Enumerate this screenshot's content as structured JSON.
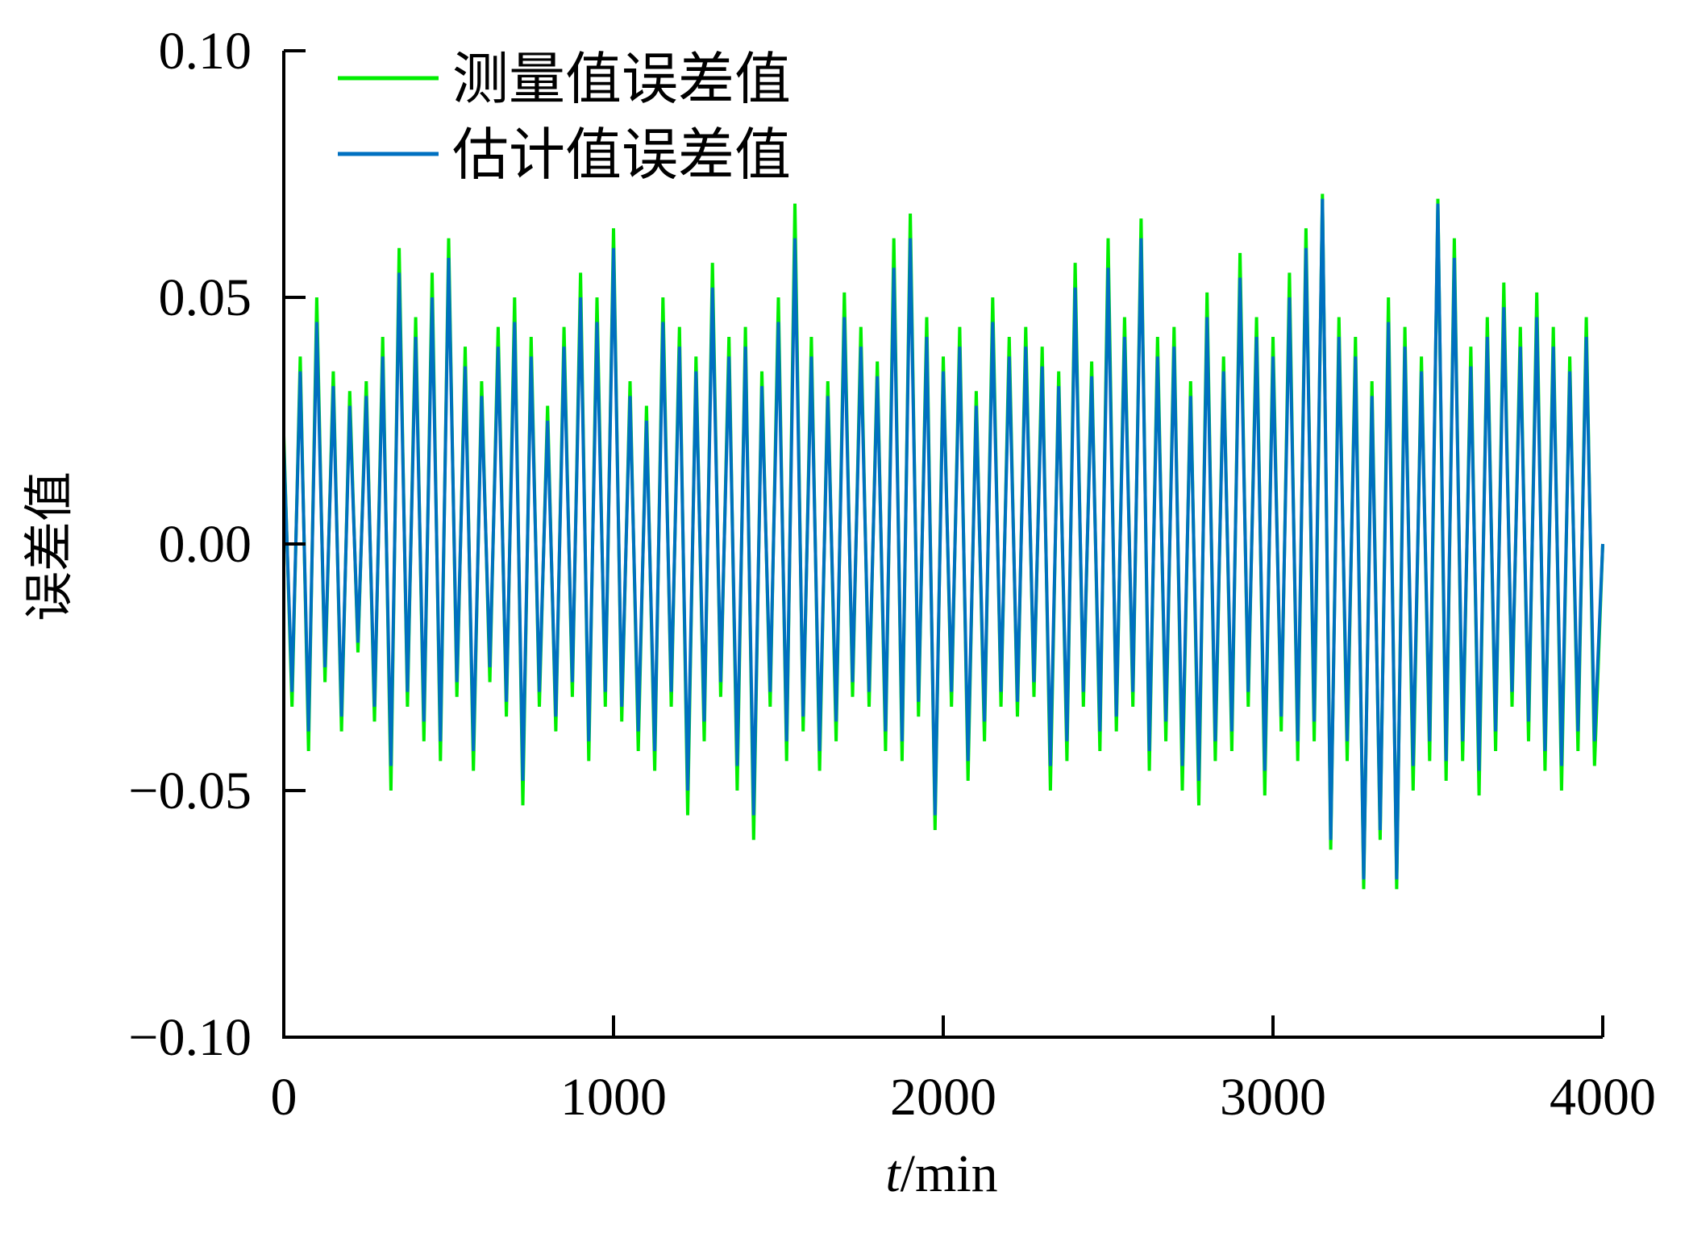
{
  "chart_data": {
    "type": "line",
    "title": "",
    "xlabel_italic": "t",
    "xlabel_rest": "/min",
    "ylabel": "误差值",
    "xlim": [
      0,
      4000
    ],
    "ylim": [
      -0.1,
      0.1
    ],
    "xticks": [
      "0",
      "1000",
      "2000",
      "3000",
      "4000"
    ],
    "xtick_values": [
      0,
      1000,
      2000,
      3000,
      4000
    ],
    "yticks": [
      "0.10",
      "0.05",
      "0.00",
      "−0.05",
      "−0.10"
    ],
    "ytick_values": [
      0.1,
      0.05,
      0.0,
      -0.05,
      -0.1
    ],
    "grid": false,
    "legend_position": "top-left",
    "x_step": 25,
    "series": [
      {
        "name": "测量值误差值",
        "color": "#00ee00",
        "values": [
          0.022,
          -0.033,
          0.038,
          -0.042,
          0.05,
          -0.028,
          0.035,
          -0.038,
          0.031,
          -0.022,
          0.033,
          -0.036,
          0.042,
          -0.05,
          0.06,
          -0.033,
          0.046,
          -0.04,
          0.055,
          -0.044,
          0.062,
          -0.031,
          0.04,
          -0.046,
          0.033,
          -0.028,
          0.044,
          -0.035,
          0.05,
          -0.053,
          0.042,
          -0.033,
          0.028,
          -0.038,
          0.044,
          -0.031,
          0.055,
          -0.044,
          0.05,
          -0.033,
          0.064,
          -0.036,
          0.033,
          -0.042,
          0.028,
          -0.046,
          0.05,
          -0.033,
          0.044,
          -0.055,
          0.038,
          -0.04,
          0.057,
          -0.031,
          0.042,
          -0.05,
          0.044,
          -0.06,
          0.035,
          -0.033,
          0.05,
          -0.044,
          0.069,
          -0.038,
          0.042,
          -0.046,
          0.033,
          -0.04,
          0.051,
          -0.031,
          0.044,
          -0.033,
          0.037,
          -0.042,
          0.062,
          -0.044,
          0.067,
          -0.035,
          0.046,
          -0.058,
          0.038,
          -0.033,
          0.044,
          -0.048,
          0.031,
          -0.04,
          0.05,
          -0.033,
          0.042,
          -0.035,
          0.044,
          -0.031,
          0.04,
          -0.05,
          0.035,
          -0.044,
          0.057,
          -0.033,
          0.037,
          -0.042,
          0.062,
          -0.038,
          0.046,
          -0.033,
          0.066,
          -0.046,
          0.042,
          -0.04,
          0.044,
          -0.05,
          0.033,
          -0.053,
          0.051,
          -0.044,
          0.038,
          -0.042,
          0.059,
          -0.033,
          0.046,
          -0.051,
          0.042,
          -0.038,
          0.055,
          -0.044,
          0.064,
          -0.04,
          0.071,
          -0.062,
          0.046,
          -0.044,
          0.042,
          -0.07,
          0.033,
          -0.06,
          0.05,
          -0.07,
          0.044,
          -0.05,
          0.038,
          -0.044,
          0.07,
          -0.048,
          0.062,
          -0.044,
          0.04,
          -0.051,
          0.046,
          -0.042,
          0.053,
          -0.033,
          0.044,
          -0.04,
          0.051,
          -0.046,
          0.044,
          -0.05,
          0.038,
          -0.042,
          0.046,
          -0.045,
          0.0
        ]
      },
      {
        "name": "估计值误差值",
        "color": "#0070c0",
        "values": [
          0.02,
          -0.03,
          0.035,
          -0.038,
          0.045,
          -0.025,
          0.032,
          -0.035,
          0.028,
          -0.02,
          0.03,
          -0.033,
          0.038,
          -0.045,
          0.055,
          -0.03,
          0.042,
          -0.036,
          0.05,
          -0.04,
          0.058,
          -0.028,
          0.036,
          -0.042,
          0.03,
          -0.025,
          0.04,
          -0.032,
          0.045,
          -0.048,
          0.038,
          -0.03,
          0.025,
          -0.035,
          0.04,
          -0.028,
          0.05,
          -0.04,
          0.045,
          -0.03,
          0.06,
          -0.033,
          0.03,
          -0.038,
          0.025,
          -0.042,
          0.045,
          -0.03,
          0.04,
          -0.05,
          0.035,
          -0.036,
          0.052,
          -0.028,
          0.038,
          -0.045,
          0.04,
          -0.055,
          0.032,
          -0.03,
          0.045,
          -0.04,
          0.062,
          -0.035,
          0.038,
          -0.042,
          0.03,
          -0.036,
          0.046,
          -0.028,
          0.04,
          -0.03,
          0.034,
          -0.038,
          0.056,
          -0.04,
          0.062,
          -0.032,
          0.042,
          -0.055,
          0.035,
          -0.03,
          0.04,
          -0.044,
          0.028,
          -0.036,
          0.045,
          -0.03,
          0.038,
          -0.032,
          0.04,
          -0.028,
          0.036,
          -0.045,
          0.032,
          -0.04,
          0.052,
          -0.03,
          0.034,
          -0.038,
          0.056,
          -0.035,
          0.042,
          -0.03,
          0.062,
          -0.042,
          0.038,
          -0.036,
          0.04,
          -0.045,
          0.03,
          -0.048,
          0.046,
          -0.04,
          0.035,
          -0.038,
          0.054,
          -0.03,
          0.042,
          -0.046,
          0.038,
          -0.035,
          0.05,
          -0.04,
          0.06,
          -0.036,
          0.07,
          -0.06,
          0.042,
          -0.04,
          0.038,
          -0.068,
          0.03,
          -0.058,
          0.045,
          -0.068,
          0.04,
          -0.045,
          0.035,
          -0.04,
          0.069,
          -0.044,
          0.058,
          -0.04,
          0.036,
          -0.046,
          0.042,
          -0.038,
          0.048,
          -0.03,
          0.04,
          -0.036,
          0.046,
          -0.042,
          0.04,
          -0.045,
          0.035,
          -0.038,
          0.042,
          -0.04,
          0.0
        ]
      }
    ]
  }
}
